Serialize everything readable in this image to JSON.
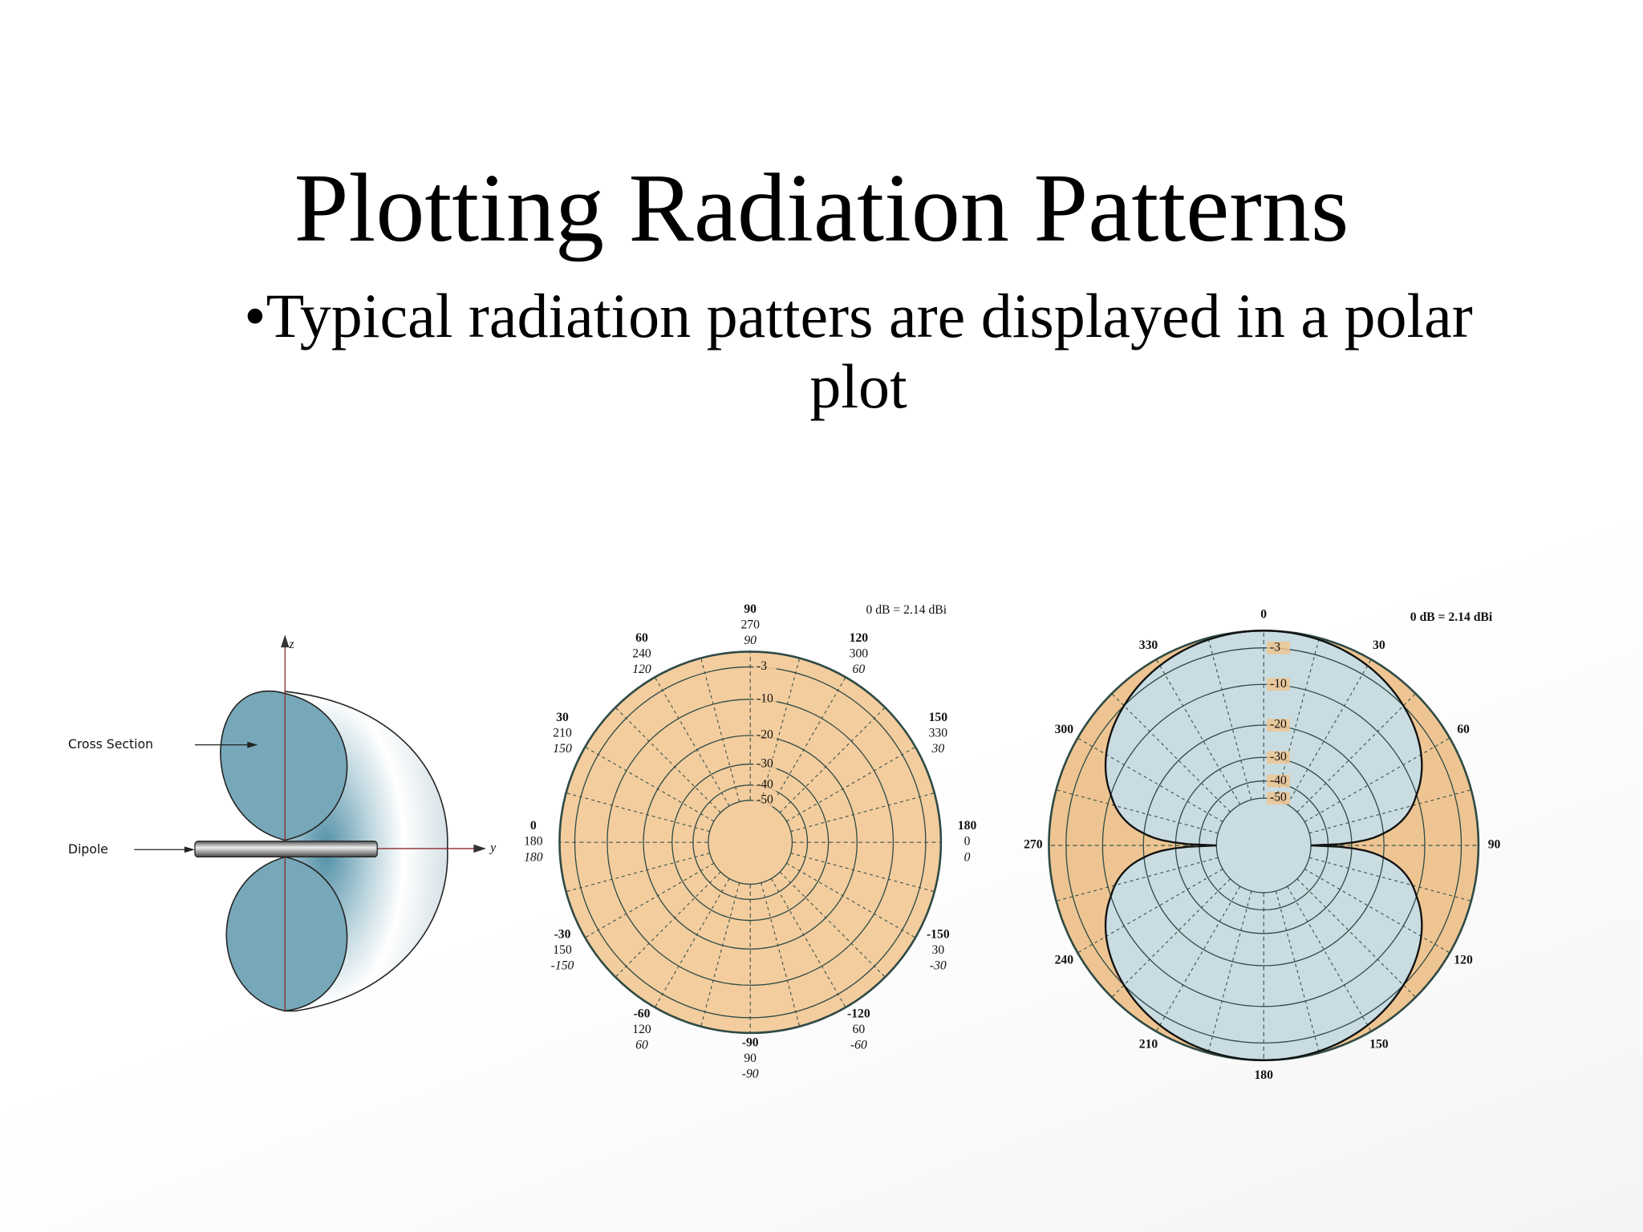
{
  "slide": {
    "title": "Plotting Radiation Patterns",
    "bullet": "•Typical radiation patters are displayed in a polar plot"
  },
  "dipole_figure": {
    "z_axis": "z",
    "y_axis": "y",
    "cross_section": "Cross Section",
    "dipole": "Dipole"
  },
  "polar_plot_1": {
    "note": "0 dB = 2.14 dBi",
    "ring_labels": [
      "-3",
      "-10",
      "-20",
      "-30",
      "-40",
      "-50"
    ],
    "angle_labels": [
      [
        "90",
        "270",
        "90"
      ],
      [
        "120",
        "300",
        "60"
      ],
      [
        "150",
        "330",
        "30"
      ],
      [
        "180",
        "0",
        "0"
      ],
      [
        "-150",
        "30",
        "-30"
      ],
      [
        "-120",
        "60",
        "-60"
      ],
      [
        "-90",
        "90",
        "-90"
      ],
      [
        "-60",
        "120",
        "60"
      ],
      [
        "-30",
        "150",
        "-150"
      ],
      [
        "0",
        "180",
        "180"
      ],
      [
        "30",
        "210",
        "150"
      ],
      [
        "60",
        "240",
        "120"
      ]
    ]
  },
  "polar_plot_2": {
    "note": "0 dB = 2.14 dBi",
    "ring_labels": [
      "-3",
      "-10",
      "-20",
      "-30",
      "-40",
      "-50"
    ],
    "angle_labels": [
      "0",
      "30",
      "60",
      "90",
      "120",
      "150",
      "180",
      "210",
      "240",
      "270",
      "300",
      "330"
    ]
  }
}
